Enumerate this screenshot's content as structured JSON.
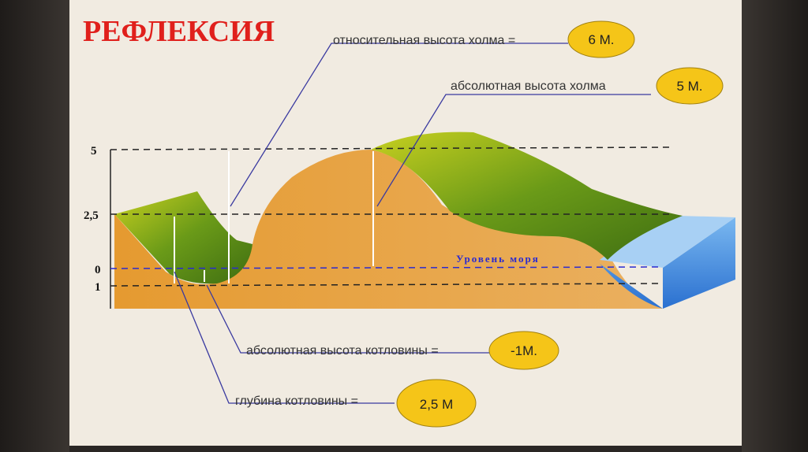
{
  "title": "РЕФЛЕКСИЯ",
  "callouts": [
    {
      "label": "относительная высота холма =",
      "answer": "6 М."
    },
    {
      "label": "абсолютная высота холма",
      "answer": "5 М."
    },
    {
      "label": "абсолютная высота котловины =",
      "answer": "-1М."
    },
    {
      "label": "глубина котловины =",
      "answer": "2,5 М"
    }
  ],
  "axis_ticks": [
    "5",
    "2,5",
    "0",
    "1"
  ],
  "sea_level_label": "Уровень моря",
  "colors": {
    "title": "#e0201c",
    "bubble": "#f5c518",
    "ground": "#e8a43a",
    "vegetation": "#7aa020",
    "water": "#4a90e0",
    "leader_line": "#3a3aa0"
  }
}
